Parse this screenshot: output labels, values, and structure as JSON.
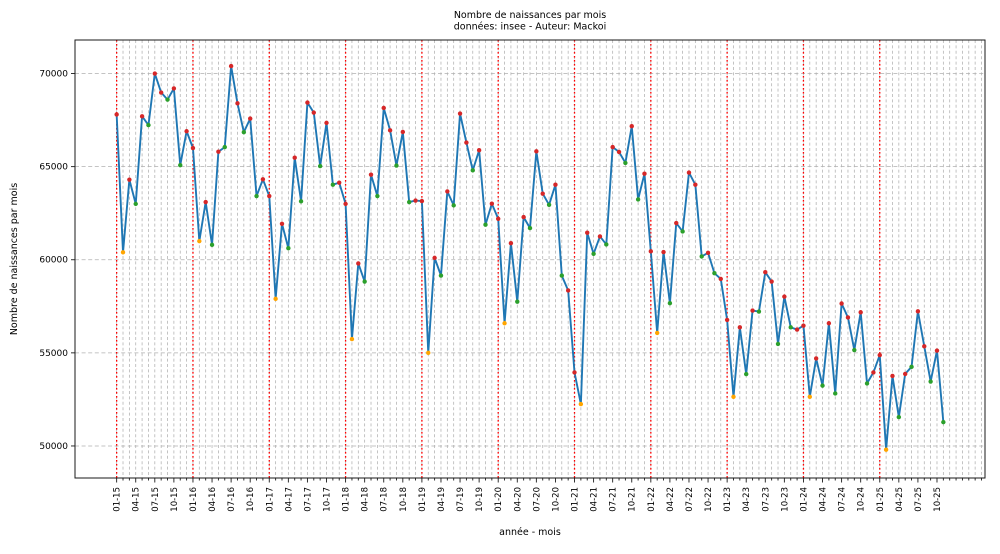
{
  "chart_data": {
    "type": "line",
    "title": "Nombre de naissances par mois",
    "subtitle": "données: insee - Auteur: Mackoi",
    "xlabel": "année - mois",
    "ylabel": "Nombre de naissances par mois",
    "ylim": [
      48280,
      71800
    ],
    "y_ticks": [
      50000,
      55000,
      60000,
      65000,
      70000
    ],
    "y_tick_labels": [
      "50000",
      "55000",
      "60000",
      "65000",
      "70000"
    ],
    "x_major_tick_step": 3,
    "grid": true,
    "legend": "none",
    "x": [
      "01-15",
      "02-15",
      "03-15",
      "04-15",
      "05-15",
      "06-15",
      "07-15",
      "08-15",
      "09-15",
      "10-15",
      "11-15",
      "12-15",
      "01-16",
      "02-16",
      "03-16",
      "04-16",
      "05-16",
      "06-16",
      "07-16",
      "08-16",
      "09-16",
      "10-16",
      "11-16",
      "12-16",
      "01-17",
      "02-17",
      "03-17",
      "04-17",
      "05-17",
      "06-17",
      "07-17",
      "08-17",
      "09-17",
      "10-17",
      "11-17",
      "12-17",
      "01-18",
      "02-18",
      "03-18",
      "04-18",
      "05-18",
      "06-18",
      "07-18",
      "08-18",
      "09-18",
      "10-18",
      "11-18",
      "12-18",
      "01-19",
      "02-19",
      "03-19",
      "04-19",
      "05-19",
      "06-19",
      "07-19",
      "08-19",
      "09-19",
      "10-19",
      "11-19",
      "12-19",
      "01-20",
      "02-20",
      "03-20",
      "04-20",
      "05-20",
      "06-20",
      "07-20",
      "08-20",
      "09-20",
      "10-20",
      "11-20",
      "12-20",
      "01-21",
      "02-21",
      "03-21",
      "04-21",
      "05-21",
      "06-21",
      "07-21",
      "08-21",
      "09-21",
      "10-21",
      "11-21",
      "12-21",
      "01-22",
      "02-22",
      "03-22",
      "04-22",
      "05-22",
      "06-22",
      "07-22",
      "08-22",
      "09-22",
      "10-22",
      "11-22",
      "12-22",
      "01-23",
      "02-23",
      "03-23",
      "04-23",
      "05-23",
      "06-23",
      "07-23",
      "08-23",
      "09-23",
      "10-23",
      "11-23",
      "12-23",
      "01-24",
      "02-24",
      "03-24",
      "04-24",
      "05-24",
      "06-24",
      "07-24",
      "08-24",
      "09-24",
      "10-24",
      "11-24",
      "12-24",
      "01-25",
      "02-25",
      "03-25",
      "04-25",
      "05-25",
      "06-25",
      "07-25",
      "08-25",
      "09-25",
      "10-25",
      "11-25"
    ],
    "series": [
      {
        "name": "naissances par mois",
        "color": "#1f77b4",
        "values": [
          67800,
          60400,
          64300,
          63000,
          67700,
          67230,
          70000,
          68980,
          68600,
          69200,
          65080,
          66900,
          66000,
          61000,
          63100,
          60800,
          65800,
          66050,
          70400,
          68400,
          66850,
          67580,
          63420,
          64320,
          63420,
          57900,
          61930,
          60620,
          65480,
          63140,
          68440,
          67900,
          65030,
          67350,
          64030,
          64140,
          63000,
          55740,
          59800,
          58830,
          64570,
          63420,
          68150,
          66950,
          65060,
          66860,
          63100,
          63180,
          63150,
          55000,
          60100,
          59150,
          63670,
          62920,
          67850,
          66290,
          64800,
          65880,
          61880,
          63010,
          62200,
          56590,
          60890,
          57750,
          62290,
          61700,
          65820,
          63550,
          62950,
          64030,
          59150,
          58350,
          53950,
          52250,
          61450,
          60320,
          61250,
          60820,
          66050,
          65790,
          65200,
          67170,
          63240,
          64620,
          60450,
          56070,
          60410,
          57670,
          61970,
          61520,
          64680,
          64030,
          60180,
          60370,
          59280,
          58970,
          56770,
          52640,
          56370,
          53860,
          57270,
          57220,
          59330,
          58830,
          55480,
          58020,
          56370,
          56250,
          56460,
          52640,
          54700,
          53240,
          56590,
          52820,
          57650,
          56900,
          55150,
          57180,
          53360,
          53950,
          54880,
          49800,
          53760,
          51550,
          53870,
          54250,
          57230,
          55350,
          53460,
          55120,
          51280
        ]
      }
    ],
    "marker_colors_by_month": {
      "01": "#d62728",
      "02": "#ffa500",
      "03": "#d62728",
      "04": "#2ca02c",
      "05": "#d62728",
      "06": "#2ca02c",
      "07": "#d62728",
      "08": "#d62728",
      "09": "#2ca02c",
      "10": "#d62728",
      "11": "#2ca02c",
      "12": "#d62728"
    },
    "january_guide_line_color": "#ff0000",
    "grid_color": "#b0b0b0",
    "spine_color": "#1a1a1a"
  }
}
